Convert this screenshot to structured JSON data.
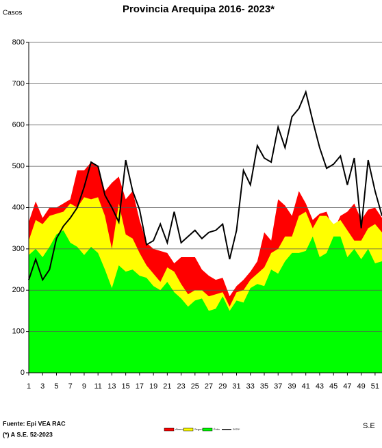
{
  "chart_data": {
    "type": "endemic-channel",
    "title": "Provincia Arequipa  2016- 2023*",
    "y_label": "Casos",
    "x_label": "S.E",
    "source": "Fuente: Epi VEA RAC",
    "note": "(*) A S.E. 52-2023",
    "x": [
      1,
      2,
      3,
      4,
      5,
      6,
      7,
      8,
      9,
      10,
      11,
      12,
      13,
      14,
      15,
      16,
      17,
      18,
      19,
      20,
      21,
      22,
      23,
      24,
      25,
      26,
      27,
      28,
      29,
      30,
      31,
      32,
      33,
      34,
      35,
      36,
      37,
      38,
      39,
      40,
      41,
      42,
      43,
      44,
      45,
      46,
      47,
      48,
      49,
      50,
      51,
      52
    ],
    "xlim": [
      1,
      52
    ],
    "xticks": [
      1,
      3,
      5,
      7,
      9,
      11,
      13,
      15,
      17,
      19,
      21,
      23,
      25,
      27,
      29,
      31,
      33,
      35,
      37,
      39,
      41,
      43,
      45,
      47,
      49,
      51
    ],
    "ylim": [
      0,
      800
    ],
    "yticks": [
      0,
      100,
      200,
      300,
      400,
      500,
      600,
      700,
      800
    ],
    "grid": true,
    "legend": "bottom",
    "series": [
      {
        "name": "Alarma",
        "kind": "area",
        "color": "#ff0000",
        "values": [
          365,
          415,
          375,
          400,
          400,
          410,
          420,
          490,
          490,
          510,
          500,
          440,
          460,
          475,
          420,
          440,
          370,
          315,
          300,
          295,
          290,
          265,
          280,
          280,
          280,
          250,
          235,
          225,
          230,
          185,
          210,
          225,
          245,
          270,
          340,
          320,
          420,
          405,
          380,
          440,
          410,
          370,
          385,
          390,
          345,
          380,
          390,
          410,
          370,
          395,
          400,
          375
        ]
      },
      {
        "name": "Seguridad",
        "kind": "area",
        "color": "#ffff00",
        "values": [
          320,
          370,
          360,
          380,
          385,
          390,
          410,
          400,
          425,
          420,
          425,
          380,
          300,
          410,
          335,
          325,
          290,
          260,
          240,
          220,
          255,
          245,
          215,
          190,
          200,
          200,
          185,
          190,
          195,
          160,
          195,
          200,
          225,
          240,
          255,
          290,
          300,
          330,
          330,
          380,
          390,
          350,
          380,
          380,
          360,
          370,
          345,
          320,
          320,
          350,
          360,
          340
        ]
      },
      {
        "name": "Éxito",
        "kind": "area",
        "color": "#00ff00",
        "values": [
          285,
          300,
          280,
          305,
          335,
          345,
          315,
          305,
          285,
          305,
          290,
          250,
          205,
          260,
          245,
          250,
          235,
          230,
          210,
          200,
          220,
          195,
          180,
          160,
          175,
          180,
          150,
          155,
          185,
          150,
          175,
          170,
          205,
          215,
          210,
          250,
          240,
          270,
          290,
          290,
          295,
          330,
          280,
          290,
          330,
          330,
          280,
          300,
          275,
          300,
          265,
          270
        ]
      },
      {
        "name": "2023*",
        "kind": "line",
        "color": "#000000",
        "values": [
          225,
          275,
          225,
          250,
          325,
          355,
          375,
          400,
          450,
          510,
          500,
          430,
          400,
          365,
          515,
          440,
          395,
          310,
          320,
          360,
          315,
          390,
          315,
          330,
          345,
          325,
          340,
          345,
          360,
          275,
          345,
          490,
          455,
          550,
          520,
          510,
          595,
          545,
          620,
          640,
          680,
          610,
          545,
          495,
          505,
          525,
          455,
          520,
          350,
          515,
          440,
          380
        ]
      }
    ]
  }
}
